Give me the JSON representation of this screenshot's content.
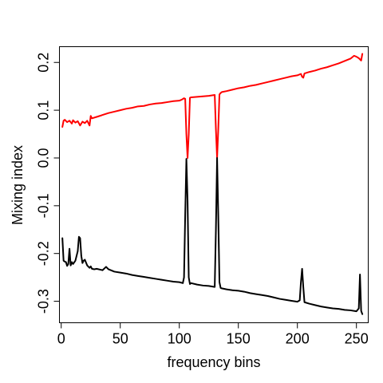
{
  "chart_data": {
    "type": "line",
    "title": "",
    "xlabel": "frequency bins",
    "ylabel": "Mixing index",
    "xlim": [
      -1.5,
      260
    ],
    "ylim": [
      -0.345,
      0.233
    ],
    "x_ticks": [
      0,
      50,
      100,
      150,
      200,
      250
    ],
    "x_tick_labels": [
      "0",
      "50",
      "100",
      "150",
      "200",
      "250"
    ],
    "y_ticks": [
      -0.3,
      -0.2,
      -0.1,
      0.0,
      0.1,
      0.2
    ],
    "y_tick_labels": [
      "-0.3",
      "-0.2",
      "-0.1",
      "0.0",
      "0.1",
      "0.2"
    ],
    "grid": false,
    "legend": "none",
    "series": [
      {
        "color": "#ff0000",
        "x": [
          1,
          2,
          3,
          5,
          7,
          9,
          10,
          12,
          14,
          16,
          18,
          20,
          22,
          24,
          25,
          26,
          30,
          35,
          40,
          45,
          50,
          55,
          60,
          65,
          70,
          75,
          80,
          85,
          90,
          95,
          100,
          102,
          104,
          105,
          106,
          107,
          108,
          109,
          110,
          115,
          120,
          125,
          130,
          131,
          132,
          133,
          134,
          135,
          136,
          140,
          145,
          150,
          155,
          160,
          165,
          170,
          175,
          180,
          185,
          190,
          195,
          200,
          203,
          204,
          205,
          206,
          210,
          215,
          220,
          225,
          230,
          235,
          240,
          245,
          248,
          250,
          252,
          254,
          255
        ],
        "values": [
          0.065,
          0.078,
          0.08,
          0.075,
          0.078,
          0.072,
          0.079,
          0.074,
          0.077,
          0.068,
          0.076,
          0.073,
          0.078,
          0.068,
          0.088,
          0.083,
          0.086,
          0.09,
          0.094,
          0.097,
          0.1,
          0.103,
          0.105,
          0.108,
          0.109,
          0.112,
          0.114,
          0.115,
          0.117,
          0.119,
          0.12,
          0.122,
          0.125,
          0.124,
          0.05,
          0.0,
          0.05,
          0.126,
          0.127,
          0.128,
          0.129,
          0.13,
          0.132,
          0.06,
          0.0,
          0.06,
          0.133,
          0.136,
          0.138,
          0.14,
          0.143,
          0.146,
          0.148,
          0.151,
          0.153,
          0.156,
          0.159,
          0.162,
          0.165,
          0.168,
          0.171,
          0.173,
          0.176,
          0.17,
          0.168,
          0.177,
          0.18,
          0.183,
          0.187,
          0.19,
          0.194,
          0.198,
          0.203,
          0.208,
          0.214,
          0.212,
          0.209,
          0.204,
          0.218
        ]
      },
      {
        "color": "#000000",
        "x": [
          1,
          2,
          3,
          4,
          5,
          6,
          7,
          8,
          9,
          10,
          12,
          14,
          15,
          16,
          17,
          18,
          19,
          20,
          22,
          24,
          25,
          26,
          28,
          30,
          35,
          38,
          40,
          45,
          50,
          55,
          60,
          65,
          70,
          75,
          80,
          85,
          90,
          95,
          100,
          103,
          104,
          105,
          106,
          107,
          108,
          109,
          110,
          115,
          120,
          125,
          130,
          131,
          132,
          133,
          134,
          135,
          136,
          140,
          145,
          150,
          155,
          160,
          165,
          170,
          175,
          180,
          185,
          190,
          195,
          200,
          202,
          203,
          204,
          205,
          206,
          210,
          215,
          220,
          225,
          230,
          235,
          240,
          245,
          250,
          252,
          253,
          254,
          255
        ],
        "values": [
          -0.168,
          -0.215,
          -0.217,
          -0.218,
          -0.226,
          -0.222,
          -0.19,
          -0.225,
          -0.218,
          -0.222,
          -0.215,
          -0.195,
          -0.165,
          -0.168,
          -0.205,
          -0.22,
          -0.215,
          -0.213,
          -0.225,
          -0.23,
          -0.227,
          -0.232,
          -0.233,
          -0.232,
          -0.235,
          -0.228,
          -0.233,
          -0.238,
          -0.24,
          -0.242,
          -0.245,
          -0.247,
          -0.249,
          -0.251,
          -0.253,
          -0.255,
          -0.257,
          -0.259,
          -0.26,
          -0.262,
          -0.25,
          -0.12,
          -0.002,
          -0.09,
          -0.25,
          -0.264,
          -0.262,
          -0.265,
          -0.267,
          -0.268,
          -0.27,
          -0.15,
          0.0,
          -0.12,
          -0.26,
          -0.272,
          -0.273,
          -0.275,
          -0.277,
          -0.278,
          -0.28,
          -0.283,
          -0.285,
          -0.287,
          -0.289,
          -0.292,
          -0.295,
          -0.297,
          -0.299,
          -0.301,
          -0.298,
          -0.26,
          -0.232,
          -0.27,
          -0.302,
          -0.305,
          -0.308,
          -0.311,
          -0.313,
          -0.315,
          -0.316,
          -0.318,
          -0.319,
          -0.321,
          -0.315,
          -0.244,
          -0.32,
          -0.327
        ]
      }
    ]
  }
}
